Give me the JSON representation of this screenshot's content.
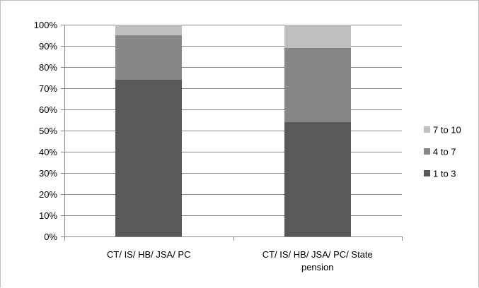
{
  "chart_data": {
    "type": "bar",
    "stacked": true,
    "percent": true,
    "categories": [
      [
        "CT/ IS/ HB/ JSA/ PC"
      ],
      [
        "CT/ IS/ HB/ JSA/ PC/ State",
        "pension"
      ]
    ],
    "series": [
      {
        "name": "1 to 3",
        "values": [
          74,
          54
        ],
        "color": "#595959"
      },
      {
        "name": "4 to 7",
        "values": [
          21,
          35
        ],
        "color": "#878787"
      },
      {
        "name": "7 to 10",
        "values": [
          5,
          11
        ],
        "color": "#bfbfbf"
      }
    ],
    "yticks": [
      "0%",
      "10%",
      "20%",
      "30%",
      "40%",
      "50%",
      "60%",
      "70%",
      "80%",
      "90%",
      "100%"
    ],
    "ylim": [
      0,
      100
    ],
    "grid": true,
    "legend": "right",
    "legend_order": [
      "7 to 10",
      "4 to 7",
      "1 to 3"
    ],
    "gridline_color": "#888888"
  }
}
